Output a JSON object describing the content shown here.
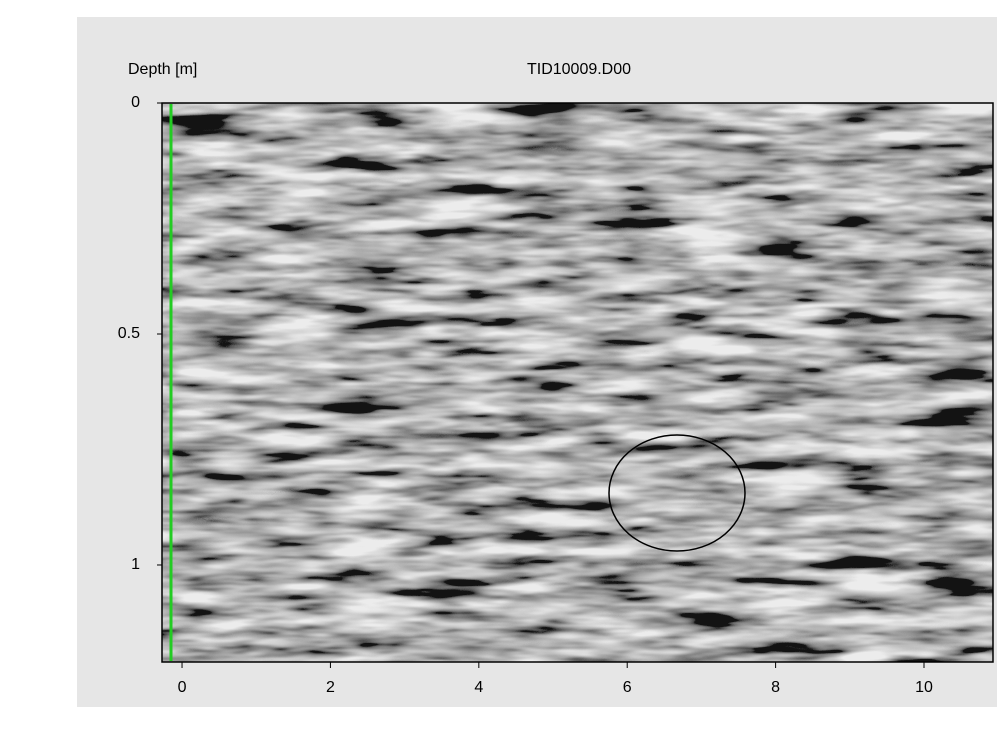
{
  "window": {
    "title": "TID10009.D00",
    "y_axis": {
      "label": "Depth [m]",
      "lim": [
        0,
        1.21
      ],
      "ticks": [
        0,
        0.5,
        1
      ]
    },
    "x_axis": {
      "lim": [
        -0.27,
        10.93
      ],
      "ticks": [
        0,
        2,
        4,
        6,
        8,
        10
      ]
    }
  }
}
